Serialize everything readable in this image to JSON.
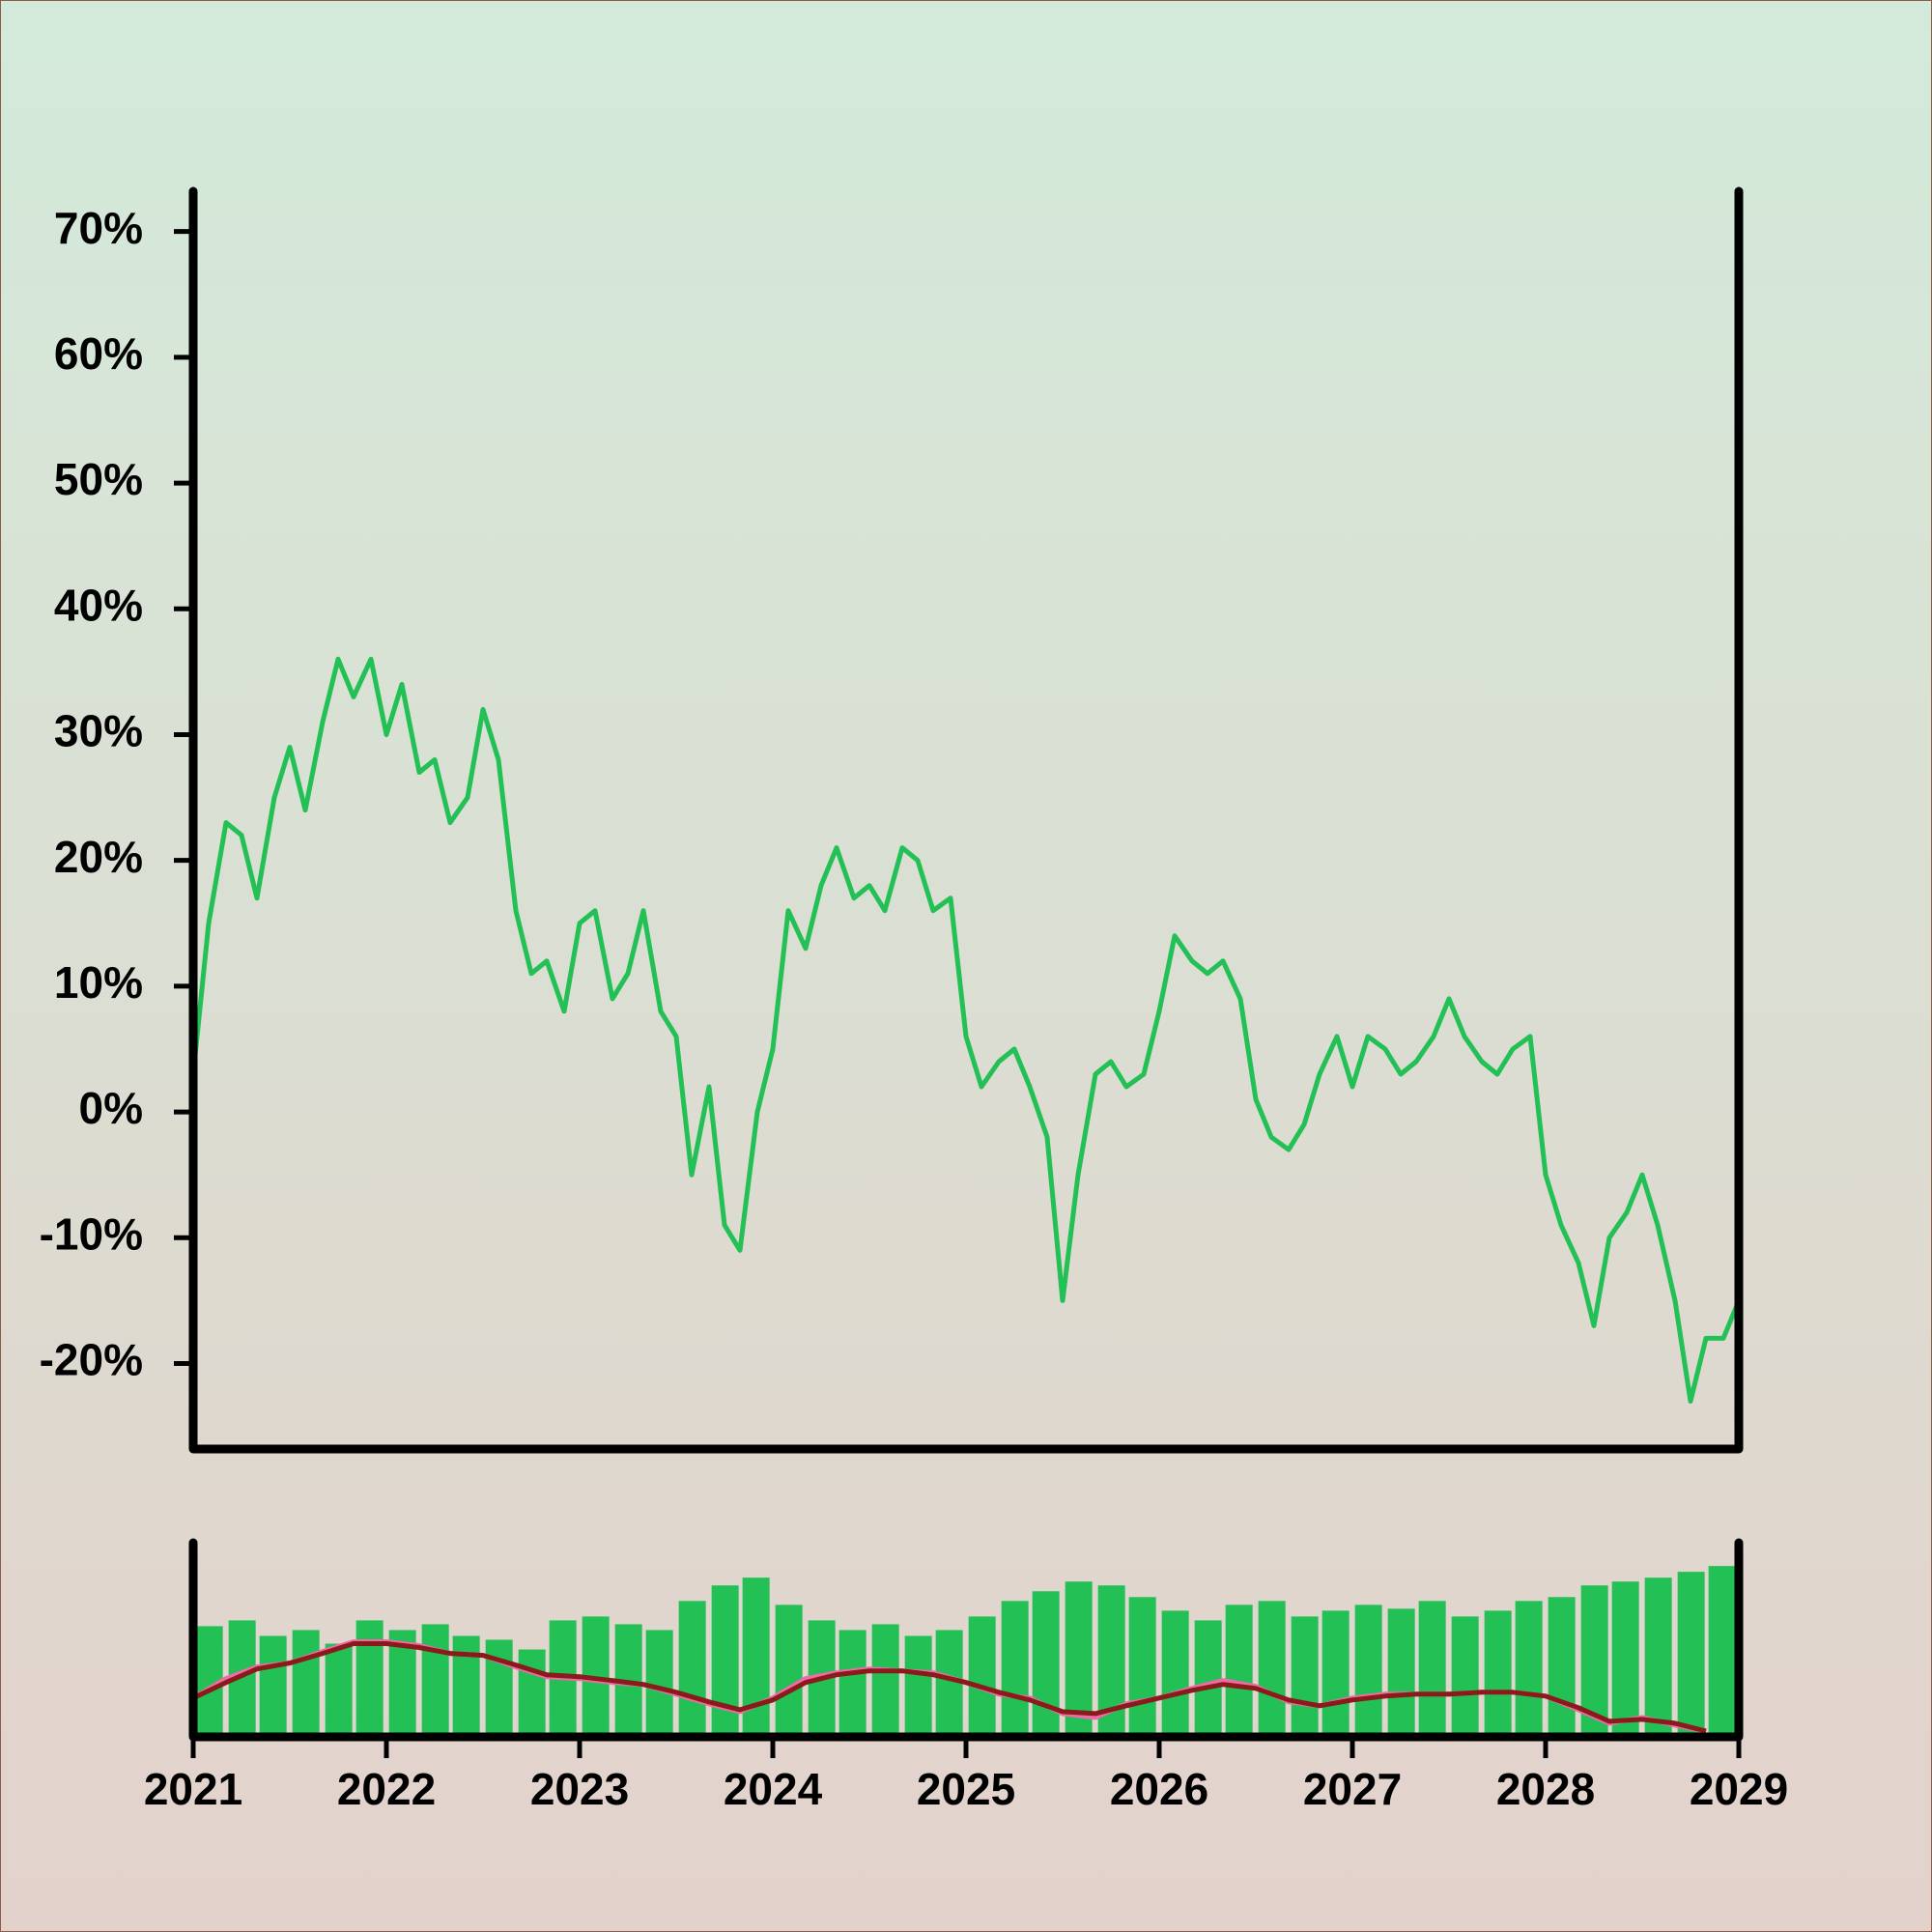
{
  "chart_data": [
    {
      "type": "line",
      "color": "#22c055",
      "x": [
        2021.0,
        2021.08,
        2021.17,
        2021.25,
        2021.33,
        2021.42,
        2021.5,
        2021.58,
        2021.67,
        2021.75,
        2021.83,
        2021.92,
        2022.0,
        2022.08,
        2022.17,
        2022.25,
        2022.33,
        2022.42,
        2022.5,
        2022.58,
        2022.67,
        2022.75,
        2022.83,
        2022.92,
        2023.0,
        2023.08,
        2023.17,
        2023.25,
        2023.33,
        2023.42,
        2023.5,
        2023.58,
        2023.67,
        2023.75,
        2023.83,
        2023.92,
        2024.0,
        2024.08,
        2024.17,
        2024.25,
        2024.33,
        2024.42,
        2024.5,
        2024.58,
        2024.67,
        2024.75,
        2024.83,
        2024.92,
        2025.0,
        2025.08,
        2025.17,
        2025.25,
        2025.33,
        2025.42,
        2025.5,
        2025.58,
        2025.67,
        2025.75,
        2025.83,
        2025.92,
        2026.0,
        2026.08,
        2026.17,
        2026.25,
        2026.33,
        2026.42,
        2026.5,
        2026.58,
        2026.67,
        2026.75,
        2026.83,
        2026.92,
        2027.0,
        2027.08,
        2027.17,
        2027.25,
        2027.33,
        2027.42,
        2027.5,
        2027.58,
        2027.67,
        2027.75,
        2027.83,
        2027.92,
        2028.0,
        2028.08,
        2028.17,
        2028.25,
        2028.33,
        2028.42,
        2028.5,
        2028.58,
        2028.67,
        2028.75,
        2028.83,
        2028.92,
        2029.0
      ],
      "values": [
        3,
        15,
        23,
        22,
        17,
        25,
        29,
        24,
        31,
        36,
        33,
        36,
        30,
        34,
        27,
        28,
        23,
        25,
        32,
        28,
        16,
        11,
        12,
        8,
        15,
        16,
        9,
        11,
        16,
        8,
        6,
        -5,
        2,
        -9,
        -11,
        0,
        5,
        16,
        13,
        18,
        21,
        17,
        18,
        16,
        21,
        20,
        16,
        17,
        6,
        2,
        4,
        5,
        2,
        -2,
        -15,
        -5,
        3,
        4,
        2,
        3,
        8,
        14,
        12,
        11,
        12,
        9,
        1,
        -2,
        -3,
        -1,
        3,
        6,
        2,
        6,
        5,
        3,
        4,
        6,
        9,
        6,
        4,
        3,
        5,
        6,
        -5,
        -9,
        -12,
        -17,
        -10,
        -8,
        -5,
        -9,
        -15,
        -23,
        -18,
        -18,
        -15
      ],
      "xlim": [
        2021,
        2029
      ],
      "ylim": [
        -26.8,
        73.2
      ],
      "yticks": [
        {
          "value": -20,
          "label": "-20%"
        },
        {
          "value": -10,
          "label": "-10%"
        },
        {
          "value": 0,
          "label": "0%"
        },
        {
          "value": 10,
          "label": "10%"
        },
        {
          "value": 20,
          "label": "20%"
        },
        {
          "value": 30,
          "label": "30%"
        },
        {
          "value": 40,
          "label": "40%"
        },
        {
          "value": 50,
          "label": "50%"
        },
        {
          "value": 60,
          "label": "60%"
        },
        {
          "value": 70,
          "label": "70%"
        }
      ]
    },
    {
      "type": "bar",
      "color": "#22c055",
      "x": [
        2021.0,
        2021.17,
        2021.33,
        2021.5,
        2021.67,
        2021.83,
        2022.0,
        2022.17,
        2022.33,
        2022.5,
        2022.67,
        2022.83,
        2023.0,
        2023.17,
        2023.33,
        2023.5,
        2023.67,
        2023.83,
        2024.0,
        2024.17,
        2024.33,
        2024.5,
        2024.67,
        2024.83,
        2025.0,
        2025.17,
        2025.33,
        2025.5,
        2025.67,
        2025.83,
        2026.0,
        2026.17,
        2026.33,
        2026.5,
        2026.67,
        2026.83,
        2027.0,
        2027.17,
        2027.33,
        2027.5,
        2027.67,
        2027.83,
        2028.0,
        2028.17,
        2028.33,
        2028.5,
        2028.67,
        2028.83
      ],
      "values": [
        57,
        60,
        52,
        55,
        48,
        60,
        55,
        58,
        52,
        50,
        45,
        60,
        62,
        58,
        55,
        70,
        78,
        82,
        68,
        60,
        55,
        58,
        52,
        55,
        62,
        70,
        75,
        80,
        78,
        72,
        65,
        60,
        68,
        70,
        62,
        65,
        68,
        66,
        70,
        62,
        65,
        70,
        72,
        78,
        80,
        82,
        85,
        88
      ],
      "overlays": [
        {
          "type": "line",
          "color": "#f06aa8",
          "values": [
            20,
            30,
            36,
            38,
            44,
            49,
            49,
            47,
            43,
            42,
            36,
            31,
            30,
            28,
            27,
            22,
            17,
            13,
            20,
            30,
            33,
            35,
            34,
            33,
            28,
            22,
            20,
            12,
            10,
            17,
            20,
            25,
            29,
            26,
            18,
            16,
            20,
            22,
            22,
            22,
            23,
            23,
            21,
            14,
            7,
            10,
            6,
            3
          ]
        },
        {
          "type": "line",
          "color": "#8b1a1a",
          "values": [
            20,
            28,
            35,
            38,
            43,
            48,
            48,
            46,
            43,
            42,
            37,
            32,
            31,
            29,
            27,
            23,
            18,
            14,
            19,
            28,
            32,
            34,
            34,
            32,
            28,
            23,
            19,
            13,
            12,
            16,
            20,
            24,
            27,
            25,
            19,
            16,
            19,
            21,
            22,
            22,
            23,
            23,
            21,
            15,
            8,
            9,
            7,
            3
          ]
        }
      ],
      "xlim": [
        2021,
        2029
      ],
      "ylim": [
        0,
        100
      ],
      "xticks": [
        2021,
        2022,
        2023,
        2024,
        2025,
        2026,
        2027,
        2028,
        2029
      ]
    }
  ]
}
